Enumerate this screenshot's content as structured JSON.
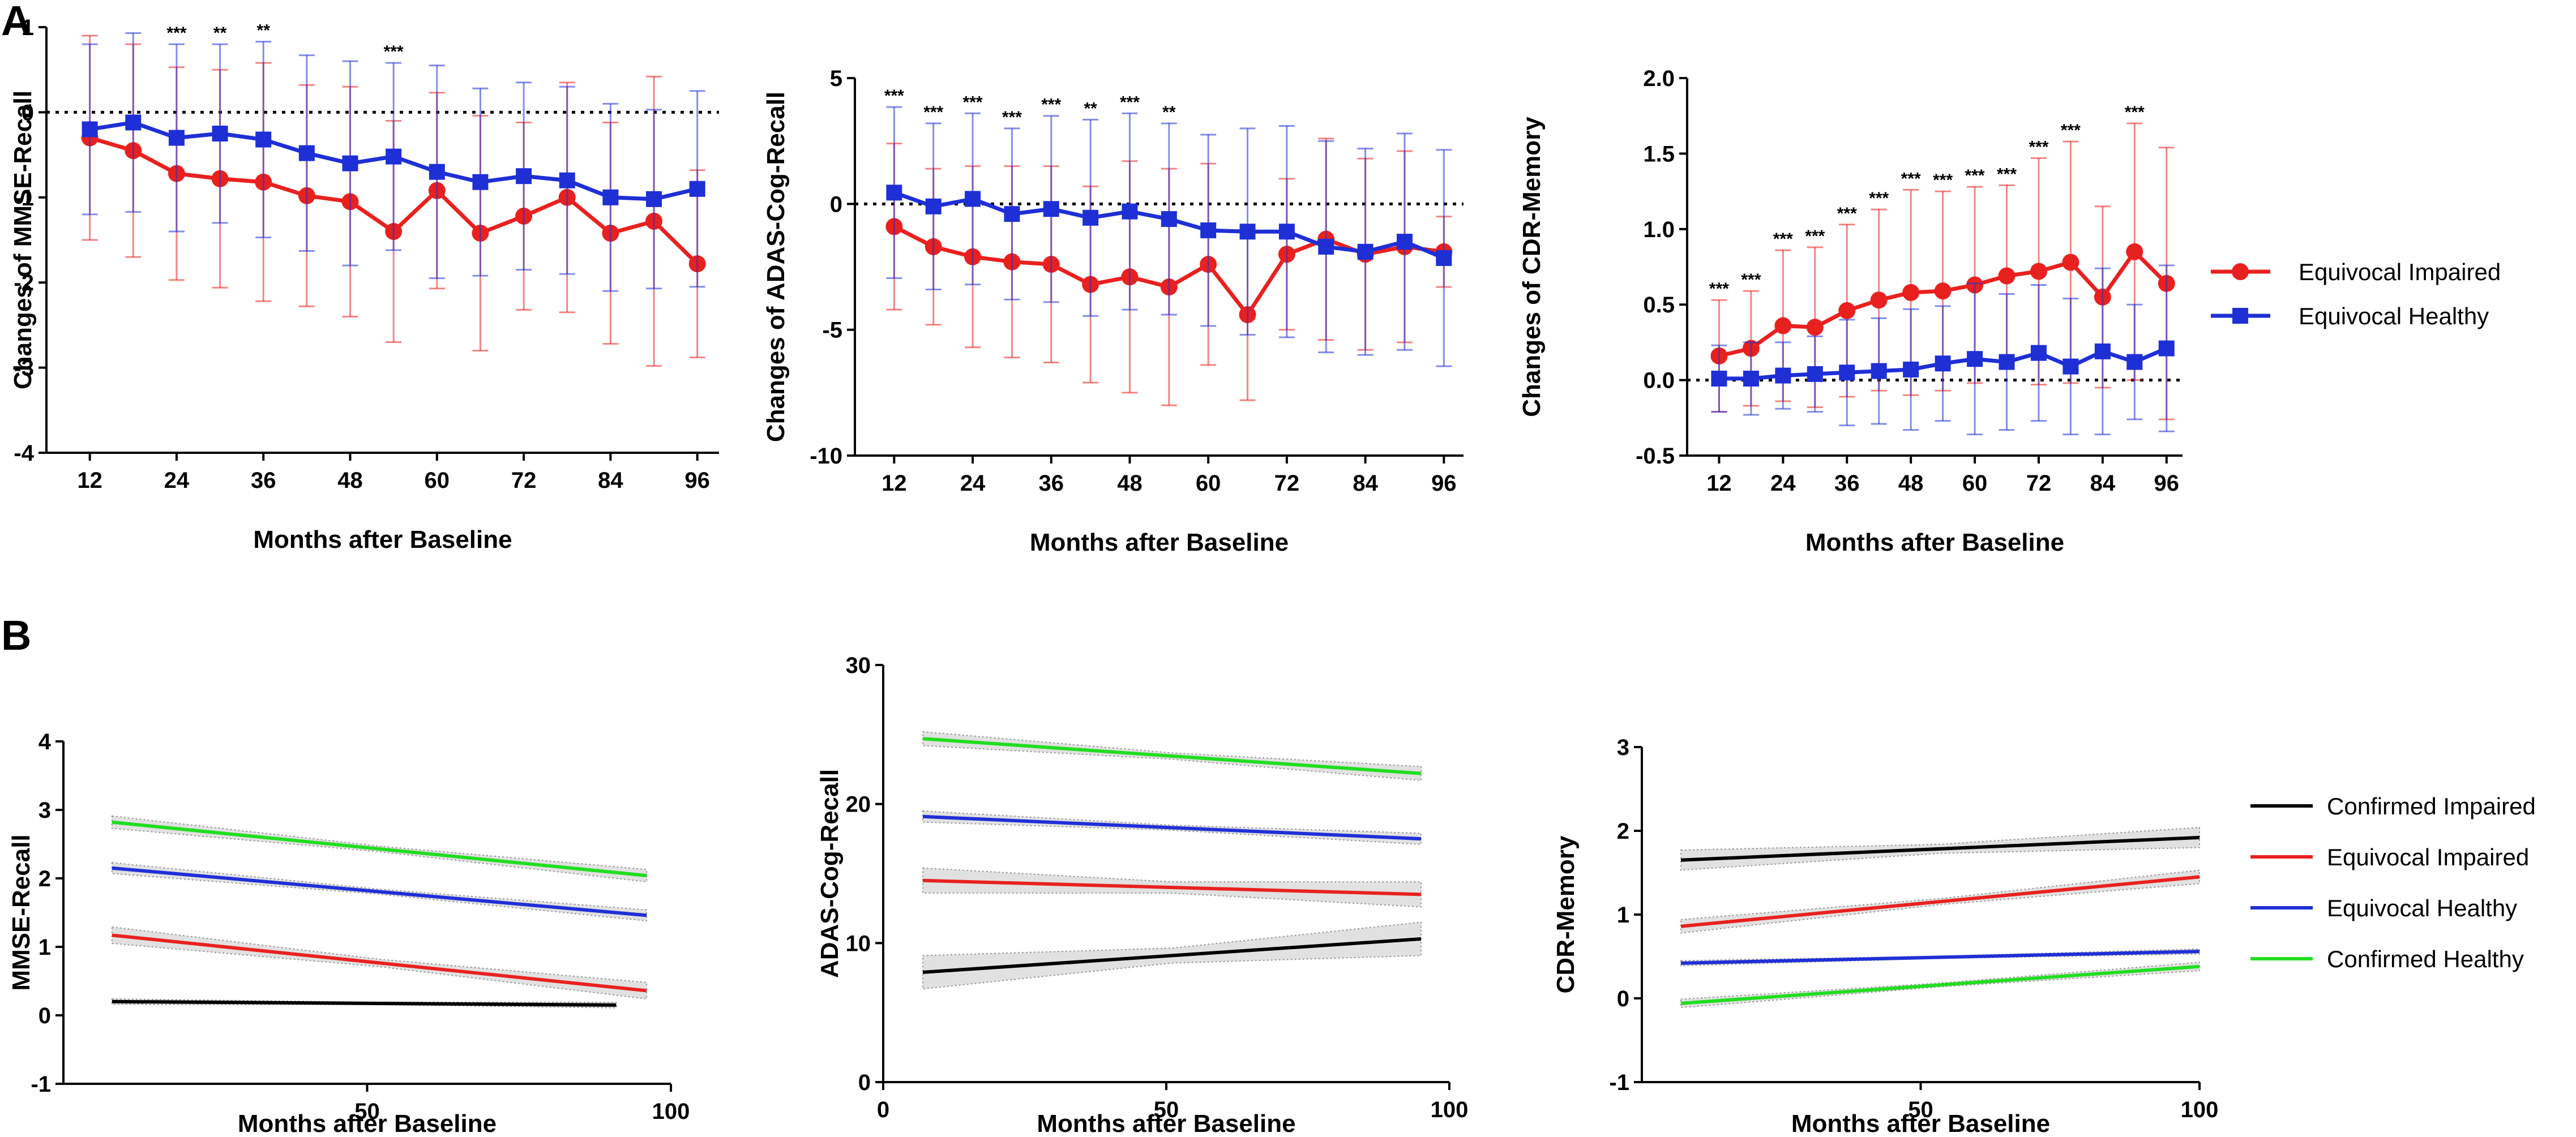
{
  "panel_labels": [
    "A",
    "B"
  ],
  "colors": {
    "impaired": "#e8211f",
    "healthy": "#1f2fd6",
    "confirmed_impaired": "#000000",
    "confirmed_healthy": "#22dd22"
  },
  "legend_a": [
    {
      "label": "Equivocal Impaired",
      "color": "#e8211f",
      "marker": "circle"
    },
    {
      "label": "Equivocal Healthy",
      "color": "#1f2fd6",
      "marker": "square"
    }
  ],
  "legend_b": [
    {
      "label": "Confirmed Impaired",
      "color": "#000000"
    },
    {
      "label": "Equivocal Impaired",
      "color": "#e8211f"
    },
    {
      "label": "Equivocal Healthy",
      "color": "#1f2fd6"
    },
    {
      "label": "Confirmed Healthy",
      "color": "#22dd22"
    }
  ],
  "chart_data": [
    {
      "panel": "A",
      "type": "line",
      "title": "",
      "xlabel": "Months after Baseline",
      "ylabel": "Changes of MMSE-Recall",
      "xlim": [
        6,
        99
      ],
      "ylim": [
        -4,
        1
      ],
      "xticks": [
        12,
        24,
        36,
        48,
        60,
        72,
        84,
        96
      ],
      "yticks": [
        -4,
        -3,
        -2,
        -1,
        0,
        1
      ],
      "x": [
        12,
        18,
        24,
        30,
        36,
        42,
        48,
        54,
        60,
        66,
        72,
        78,
        84,
        90,
        96
      ],
      "reference_line": 0,
      "series": [
        {
          "name": "Equivocal Impaired",
          "color": "#e8211f",
          "values": [
            -0.3,
            -0.45,
            -0.72,
            -0.78,
            -0.82,
            -0.98,
            -1.05,
            -1.4,
            -0.92,
            -1.42,
            -1.22,
            -1.0,
            -1.42,
            -1.28,
            -1.78
          ],
          "errors": [
            1.2,
            1.25,
            1.25,
            1.28,
            1.4,
            1.3,
            1.35,
            1.3,
            1.15,
            1.38,
            1.1,
            1.35,
            1.3,
            1.7,
            1.1
          ]
        },
        {
          "name": "Equivocal Healthy",
          "color": "#1f2fd6",
          "values": [
            -0.2,
            -0.12,
            -0.3,
            -0.25,
            -0.32,
            -0.48,
            -0.6,
            -0.52,
            -0.7,
            -0.82,
            -0.75,
            -0.8,
            -1.0,
            -1.02,
            -0.9
          ],
          "errors": [
            1.0,
            1.05,
            1.1,
            1.05,
            1.15,
            1.15,
            1.2,
            1.1,
            1.25,
            1.1,
            1.1,
            1.1,
            1.1,
            1.05,
            1.15
          ]
        }
      ],
      "significance": [
        {
          "x": 24,
          "label": "***"
        },
        {
          "x": 30,
          "label": "**"
        },
        {
          "x": 36,
          "label": "**"
        },
        {
          "x": 54,
          "label": "***"
        }
      ]
    },
    {
      "panel": "A",
      "type": "line",
      "title": "",
      "xlabel": "Months after Baseline",
      "ylabel": "Changes of ADAS-Cog-Recall",
      "xlim": [
        6,
        99
      ],
      "ylim": [
        -10,
        5
      ],
      "xticks": [
        12,
        24,
        36,
        48,
        60,
        72,
        84,
        96
      ],
      "yticks": [
        -10,
        -5,
        0,
        5
      ],
      "x": [
        12,
        18,
        24,
        30,
        36,
        42,
        48,
        54,
        60,
        66,
        72,
        78,
        84,
        90,
        96
      ],
      "reference_line": 0,
      "series": [
        {
          "name": "Equivocal Impaired",
          "color": "#e8211f",
          "values": [
            -0.9,
            -1.7,
            -2.1,
            -2.3,
            -2.4,
            -3.2,
            -2.9,
            -3.3,
            -2.4,
            -4.4,
            -2.0,
            -1.4,
            -2.0,
            -1.7,
            -1.9
          ],
          "errors": [
            3.3,
            3.1,
            3.6,
            3.8,
            3.9,
            3.9,
            4.6,
            4.7,
            4.0,
            3.4,
            3.0,
            4.0,
            3.8,
            3.8,
            1.4
          ]
        },
        {
          "name": "Equivocal Healthy",
          "color": "#1f2fd6",
          "values": [
            0.45,
            -0.1,
            0.2,
            -0.4,
            -0.2,
            -0.55,
            -0.3,
            -0.6,
            -1.05,
            -1.1,
            -1.1,
            -1.7,
            -1.9,
            -1.5,
            -2.15
          ],
          "errors": [
            3.4,
            3.3,
            3.4,
            3.4,
            3.7,
            3.9,
            3.9,
            3.8,
            3.8,
            4.1,
            4.2,
            4.2,
            4.1,
            4.3,
            4.3
          ]
        }
      ],
      "significance": [
        {
          "x": 12,
          "label": "***"
        },
        {
          "x": 18,
          "label": "***"
        },
        {
          "x": 24,
          "label": "***"
        },
        {
          "x": 30,
          "label": "***"
        },
        {
          "x": 36,
          "label": "***"
        },
        {
          "x": 42,
          "label": "**"
        },
        {
          "x": 48,
          "label": "***"
        },
        {
          "x": 54,
          "label": "**"
        }
      ]
    },
    {
      "panel": "A",
      "type": "line",
      "title": "",
      "xlabel": "Months after Baseline",
      "ylabel": "Changes of CDR-Memory",
      "xlim": [
        6,
        99
      ],
      "ylim": [
        -0.5,
        2.0
      ],
      "xticks": [
        12,
        24,
        36,
        48,
        60,
        72,
        84,
        96
      ],
      "yticks": [
        -0.5,
        0.0,
        0.5,
        1.0,
        1.5,
        2.0
      ],
      "ytick_labels": [
        "-0.5",
        "0.0",
        "0.5",
        "1.0",
        "1.5",
        "2.0"
      ],
      "x": [
        12,
        18,
        24,
        30,
        36,
        42,
        48,
        54,
        60,
        66,
        72,
        78,
        84,
        90,
        96
      ],
      "reference_line": 0,
      "series": [
        {
          "name": "Equivocal Impaired",
          "color": "#e8211f",
          "values": [
            0.16,
            0.21,
            0.36,
            0.35,
            0.46,
            0.53,
            0.58,
            0.59,
            0.63,
            0.69,
            0.72,
            0.78,
            0.55,
            0.85,
            0.64
          ],
          "errors": [
            0.37,
            0.38,
            0.5,
            0.53,
            0.57,
            0.6,
            0.68,
            0.66,
            0.65,
            0.6,
            0.75,
            0.8,
            0.6,
            0.85,
            0.9
          ]
        },
        {
          "name": "Equivocal Healthy",
          "color": "#1f2fd6",
          "values": [
            0.01,
            0.01,
            0.03,
            0.04,
            0.05,
            0.06,
            0.07,
            0.11,
            0.14,
            0.12,
            0.18,
            0.09,
            0.19,
            0.12,
            0.21
          ],
          "errors": [
            0.22,
            0.24,
            0.22,
            0.25,
            0.35,
            0.35,
            0.4,
            0.38,
            0.5,
            0.45,
            0.45,
            0.45,
            0.55,
            0.38,
            0.55
          ]
        }
      ],
      "significance": [
        {
          "x": 12,
          "label": "***"
        },
        {
          "x": 18,
          "label": "***"
        },
        {
          "x": 24,
          "label": "***"
        },
        {
          "x": 30,
          "label": "***"
        },
        {
          "x": 36,
          "label": "***"
        },
        {
          "x": 42,
          "label": "***"
        },
        {
          "x": 48,
          "label": "***"
        },
        {
          "x": 54,
          "label": "***"
        },
        {
          "x": 60,
          "label": "***"
        },
        {
          "x": 66,
          "label": "***"
        },
        {
          "x": 72,
          "label": "***"
        },
        {
          "x": 78,
          "label": "***"
        },
        {
          "x": 90,
          "label": "***"
        }
      ]
    },
    {
      "panel": "B",
      "type": "line",
      "title": "",
      "xlabel": "Months after Baseline",
      "ylabel": "MMSE-Recall",
      "xlim": [
        0,
        100
      ],
      "ylim": [
        -1,
        4
      ],
      "xticks": [
        50,
        100
      ],
      "yticks": [
        -1,
        0,
        1,
        2,
        3,
        4
      ],
      "series": [
        {
          "name": "Confirmed Impaired",
          "color": "#000000",
          "x": [
            8,
            91
          ],
          "values": [
            0.2,
            0.15
          ],
          "band": 0.04
        },
        {
          "name": "Equivocal Impaired",
          "color": "#e8211f",
          "x": [
            8,
            96
          ],
          "values": [
            1.17,
            0.36
          ],
          "band": 0.12
        },
        {
          "name": "Equivocal Healthy",
          "color": "#1f2fd6",
          "x": [
            8,
            96
          ],
          "values": [
            2.15,
            1.46
          ],
          "band": 0.08
        },
        {
          "name": "Confirmed Healthy",
          "color": "#22dd22",
          "x": [
            8,
            96
          ],
          "values": [
            2.82,
            2.04
          ],
          "band": 0.09
        }
      ]
    },
    {
      "panel": "B",
      "type": "line",
      "title": "",
      "xlabel": "Months after Baseline",
      "ylabel": "ADAS-Cog-Recall",
      "xlim": [
        0,
        100
      ],
      "ylim": [
        0,
        30
      ],
      "xticks": [
        0,
        50,
        100
      ],
      "yticks": [
        0,
        10,
        20,
        30
      ],
      "series": [
        {
          "name": "Confirmed Impaired",
          "color": "#000000",
          "x": [
            7,
            95
          ],
          "values": [
            7.9,
            10.3
          ],
          "band": 1.2
        },
        {
          "name": "Equivocal Impaired",
          "color": "#e8211f",
          "x": [
            7,
            95
          ],
          "values": [
            14.5,
            13.5
          ],
          "band": 0.9
        },
        {
          "name": "Equivocal Healthy",
          "color": "#1f2fd6",
          "x": [
            7,
            95
          ],
          "values": [
            19.1,
            17.5
          ],
          "band": 0.4
        },
        {
          "name": "Confirmed Healthy",
          "color": "#22dd22",
          "x": [
            7,
            95
          ],
          "values": [
            24.7,
            22.2
          ],
          "band": 0.5
        }
      ]
    },
    {
      "panel": "B",
      "type": "line",
      "title": "",
      "xlabel": "Months after Baseline",
      "ylabel": "CDR-Memory",
      "xlim": [
        0,
        100
      ],
      "ylim": [
        -1,
        3
      ],
      "xticks": [
        50,
        100
      ],
      "yticks": [
        -1,
        0,
        1,
        2,
        3
      ],
      "series": [
        {
          "name": "Confirmed Impaired",
          "color": "#000000",
          "x": [
            7,
            100
          ],
          "values": [
            1.65,
            1.92
          ],
          "band": 0.12
        },
        {
          "name": "Equivocal Impaired",
          "color": "#e8211f",
          "x": [
            7,
            100
          ],
          "values": [
            0.86,
            1.45
          ],
          "band": 0.08
        },
        {
          "name": "Equivocal Healthy",
          "color": "#1f2fd6",
          "x": [
            7,
            100
          ],
          "values": [
            0.42,
            0.56
          ],
          "band": 0.03
        },
        {
          "name": "Confirmed Healthy",
          "color": "#22dd22",
          "x": [
            7,
            100
          ],
          "values": [
            -0.06,
            0.38
          ],
          "band": 0.05
        }
      ]
    }
  ]
}
